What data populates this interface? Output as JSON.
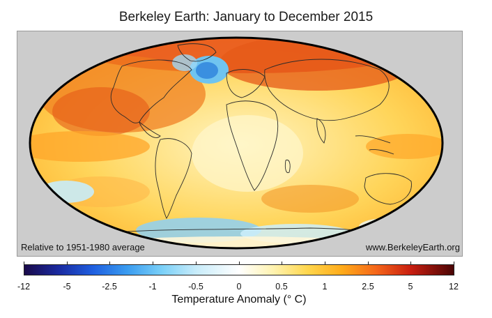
{
  "title": "Berkeley Earth: January to December 2015",
  "map": {
    "projection": "Mollweide",
    "background_color": "#cccccc",
    "caption_left": "Relative to 1951-1980 average",
    "caption_right": "www.BerkeleyEarth.org"
  },
  "colorbar": {
    "label": "Temperature Anomaly (° C)",
    "ticks": [
      "-12",
      "-5",
      "-2.5",
      "-1",
      "-0.5",
      "0",
      "0.5",
      "1",
      "2.5",
      "5",
      "12"
    ],
    "colors": {
      "cold_extreme": "#1a0a4a",
      "cold": "#1f5fe0",
      "cool": "#7ad0f8",
      "neutral": "#ffffff",
      "warm": "#ffd64d",
      "hot": "#f5661a",
      "hot_extreme": "#4a0505"
    }
  }
}
